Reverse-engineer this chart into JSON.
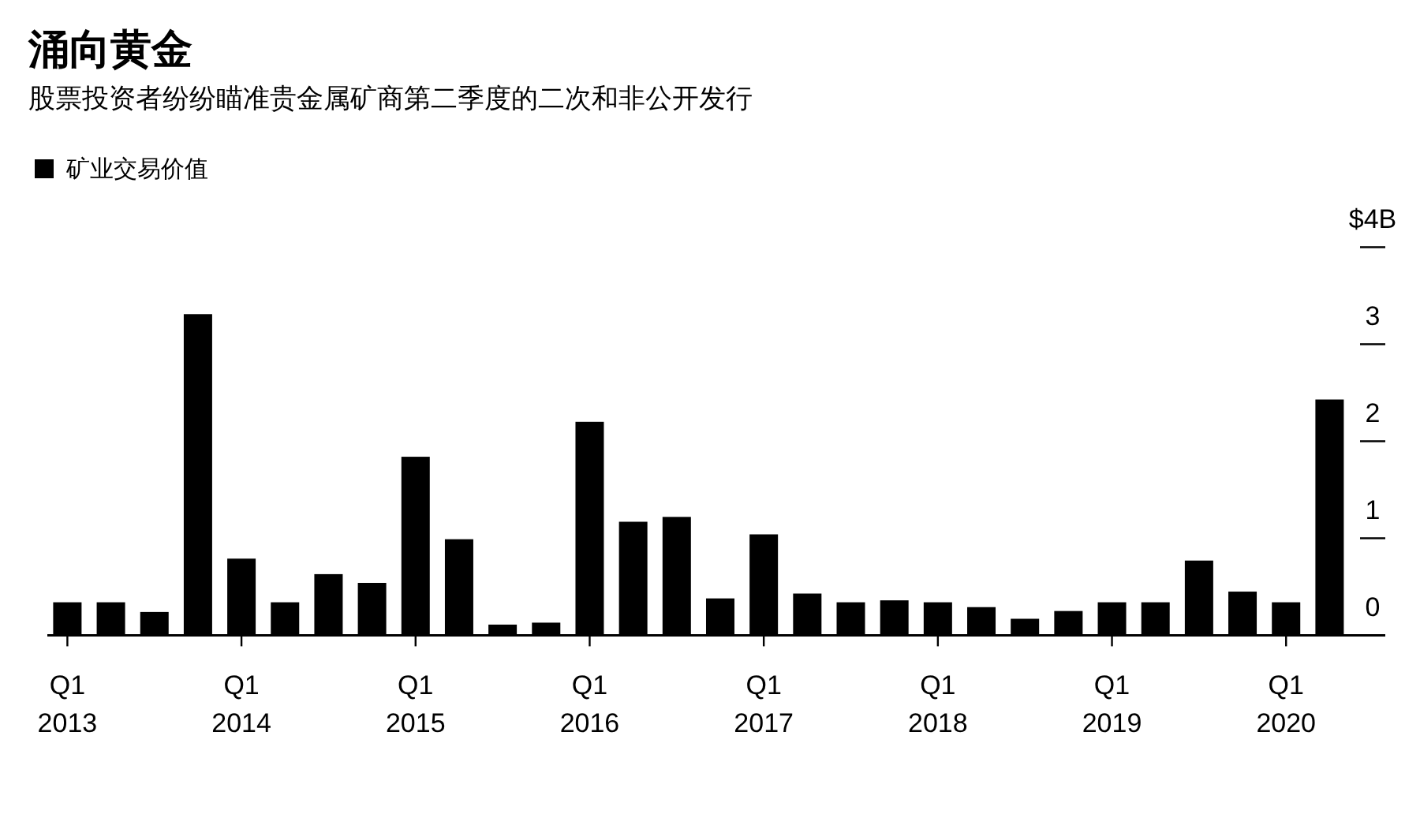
{
  "chart_data": {
    "type": "bar",
    "title": "涌向黄金",
    "subtitle": "股票投资者纷纷瞄准贵金属矿商第二季度的二次和非公开发行",
    "categories": [
      "Q1 2013",
      null,
      null,
      null,
      "Q1 2014",
      null,
      null,
      null,
      "Q1 2015",
      null,
      null,
      null,
      "Q1 2016",
      null,
      null,
      null,
      "Q1 2017",
      null,
      null,
      null,
      "Q1 2018",
      null,
      null,
      null,
      "Q1 2019",
      null,
      null,
      null,
      "Q1 2020",
      null
    ],
    "series": [
      {
        "name": "矿业交易价值",
        "color": "#000000",
        "values": [
          0.34,
          0.34,
          0.24,
          3.31,
          0.79,
          0.34,
          0.63,
          0.54,
          1.84,
          0.99,
          0.11,
          0.13,
          2.2,
          1.17,
          1.22,
          0.38,
          1.04,
          0.43,
          0.34,
          0.36,
          0.34,
          0.29,
          0.17,
          0.25,
          0.34,
          0.34,
          0.77,
          0.45,
          0.34,
          2.43
        ]
      }
    ],
    "ylim": [
      0,
      4
    ],
    "yticks": [
      0,
      1,
      2,
      3,
      {
        "value": 4,
        "label": "$4B"
      }
    ],
    "legend": "top left"
  }
}
